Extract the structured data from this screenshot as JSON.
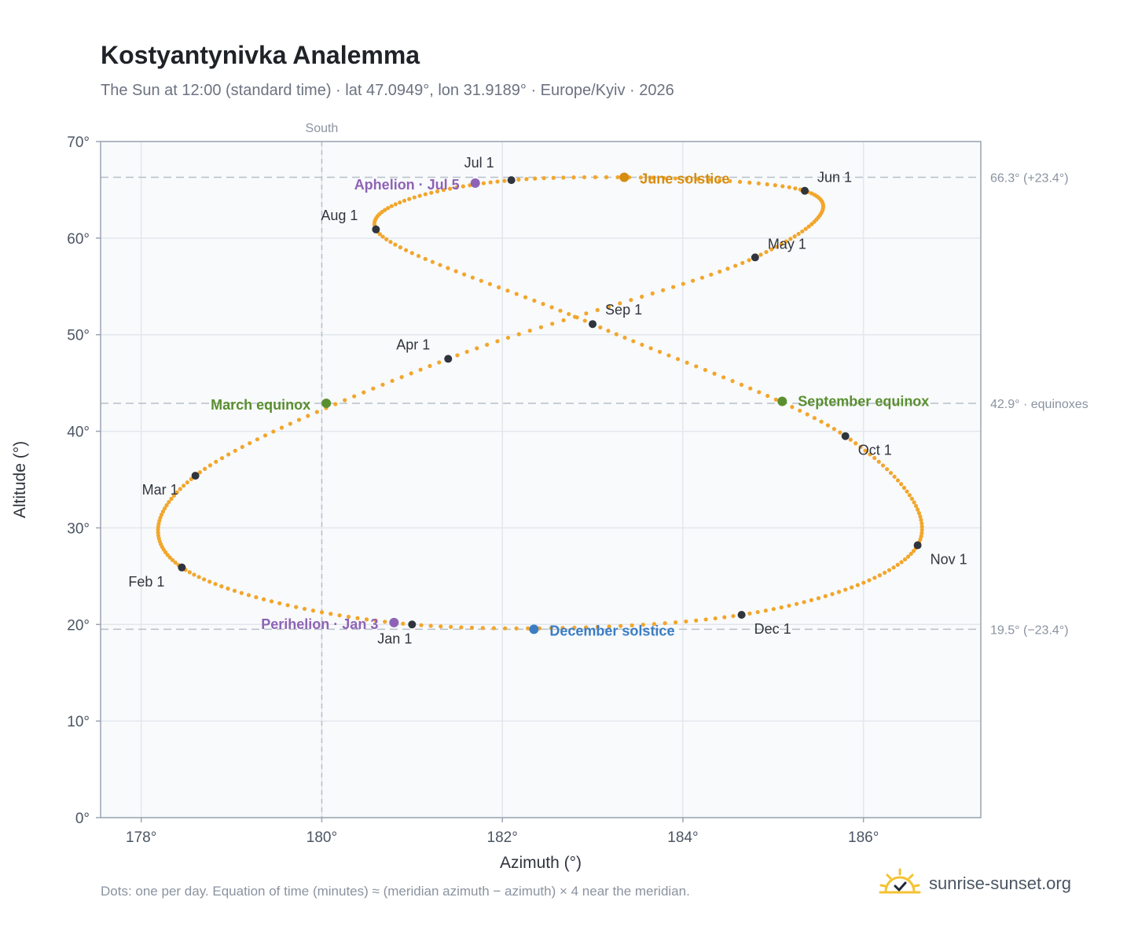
{
  "header": {
    "title": "Kostyantynivka Analemma",
    "subtitle": "The Sun at 12:00 (standard time) · lat 47.0949°, lon 31.9189° · Europe/Kyiv · 2026"
  },
  "footer": {
    "note": "Dots: one per day. Equation of time (minutes) ≈ (meridian azimuth − azimuth) × 4 near the meridian.",
    "brand": "sunrise-sunset.org"
  },
  "colors": {
    "path": "#f2a62b",
    "month_marker": "#30353d",
    "june_solstice": "#d68c10",
    "december_solstice": "#3b7dc4",
    "equinox": "#5a8f2f",
    "apsis": "#8e63b5",
    "reference_line": "#b7c0c9",
    "plot_background": "#f8fafc"
  },
  "chart_data": {
    "type": "scatter",
    "xlabel": "Azimuth (°)",
    "ylabel": "Altitude (°)",
    "xlim": [
      177.55,
      187.3
    ],
    "ylim": [
      0,
      70
    ],
    "x_ticks": [
      178,
      180,
      182,
      184,
      186
    ],
    "x_tick_labels": [
      "178°",
      "180°",
      "182°",
      "184°",
      "186°"
    ],
    "y_ticks": [
      0,
      10,
      20,
      30,
      40,
      50,
      60,
      70
    ],
    "y_tick_labels": [
      "0°",
      "10°",
      "20°",
      "30°",
      "40°",
      "50°",
      "60°",
      "70°"
    ],
    "grid": true,
    "meridian": {
      "x": 180,
      "label": "South"
    },
    "reference_lines": [
      {
        "y": 66.3,
        "label": "66.3° (+23.4°)"
      },
      {
        "y": 42.9,
        "label": "42.9° · equinoxes"
      },
      {
        "y": 19.5,
        "label": "19.5° (−23.4°)"
      }
    ],
    "month_markers": [
      {
        "label": "Jan 1",
        "x": 181.0,
        "y": 20.0
      },
      {
        "label": "Feb 1",
        "x": 178.45,
        "y": 25.9
      },
      {
        "label": "Mar 1",
        "x": 178.6,
        "y": 35.4
      },
      {
        "label": "Apr 1",
        "x": 181.4,
        "y": 47.5
      },
      {
        "label": "May 1",
        "x": 184.8,
        "y": 58.0
      },
      {
        "label": "Jun 1",
        "x": 185.35,
        "y": 64.9
      },
      {
        "label": "Jul 1",
        "x": 182.1,
        "y": 66.0
      },
      {
        "label": "Aug 1",
        "x": 180.6,
        "y": 60.9
      },
      {
        "label": "Sep 1",
        "x": 183.0,
        "y": 51.1
      },
      {
        "label": "Oct 1",
        "x": 185.8,
        "y": 39.5
      },
      {
        "label": "Nov 1",
        "x": 186.6,
        "y": 28.2
      },
      {
        "label": "Dec 1",
        "x": 184.65,
        "y": 21.0
      }
    ],
    "events": [
      {
        "label": "June solstice",
        "x": 183.35,
        "y": 66.3
      },
      {
        "label": "December solstice",
        "x": 182.35,
        "y": 19.5
      },
      {
        "label": "March equinox",
        "x": 180.05,
        "y": 42.9
      },
      {
        "label": "September equinox",
        "x": 185.1,
        "y": 43.1
      },
      {
        "label": "Aphelion · Jul 5",
        "x": 181.7,
        "y": 65.7
      },
      {
        "label": "Perihelion · Jan 3",
        "x": 180.8,
        "y": 20.2
      }
    ]
  }
}
